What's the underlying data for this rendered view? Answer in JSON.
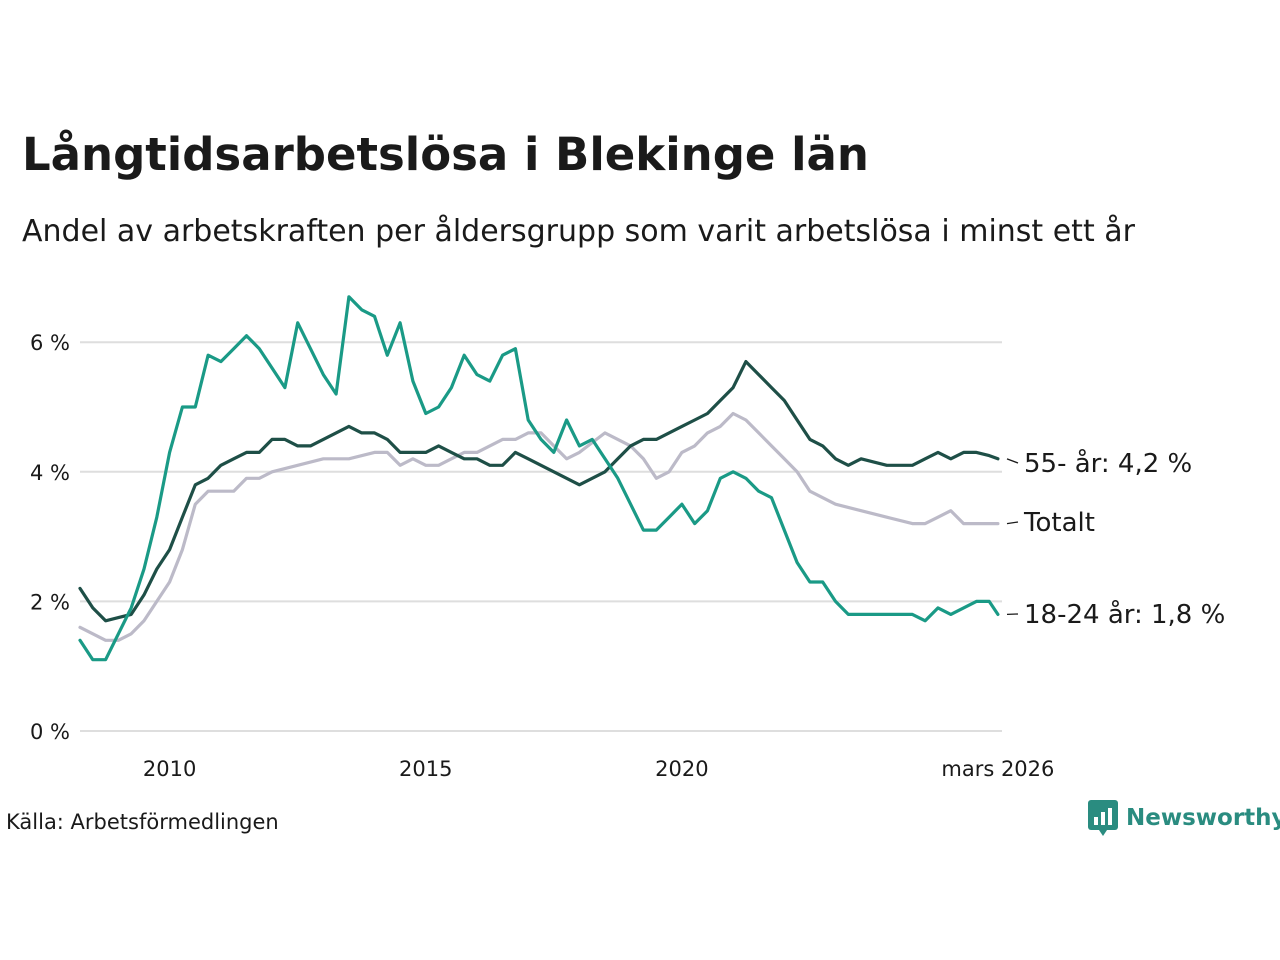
{
  "title": "Långtidsarbetslösa i Blekinge län",
  "subtitle": "Andel av arbetskraften per åldersgrupp som varit arbetslösa i minst ett år",
  "source": "Källa: Arbetsförmedlingen",
  "logo": {
    "text": "Newsworthy",
    "icon": "newsworthy-logo-icon",
    "color": "#2a8c80"
  },
  "chart_data": {
    "type": "line",
    "title": "Långtidsarbetslösa i Blekinge län",
    "xlabel": "",
    "ylabel": "",
    "xlim": [
      2008.25,
      2026.25
    ],
    "ylim": [
      0,
      6.8
    ],
    "y_ticks": [
      0,
      2,
      4,
      6
    ],
    "y_tick_labels": [
      "0 %",
      "2 %",
      "4 %",
      "6 %"
    ],
    "x_ticks": [
      2010,
      2015,
      2020,
      2026.17
    ],
    "x_tick_labels": [
      "2010",
      "2015",
      "2020",
      "mars 2026"
    ],
    "grid": true,
    "series": [
      {
        "name": "Totalt",
        "label": "Totalt",
        "color": "#bcbac8",
        "x": [
          2008.25,
          2008.5,
          2008.75,
          2009.0,
          2009.25,
          2009.5,
          2009.75,
          2010.0,
          2010.25,
          2010.5,
          2010.75,
          2011.0,
          2011.25,
          2011.5,
          2011.75,
          2012.0,
          2012.5,
          2013.0,
          2013.5,
          2014.0,
          2014.25,
          2014.5,
          2014.75,
          2015.0,
          2015.25,
          2015.5,
          2015.75,
          2016.0,
          2016.25,
          2016.5,
          2016.75,
          2017.0,
          2017.25,
          2017.5,
          2017.75,
          2018.0,
          2018.5,
          2019.0,
          2019.25,
          2019.5,
          2019.75,
          2020.0,
          2020.25,
          2020.5,
          2020.75,
          2021.0,
          2021.25,
          2021.5,
          2021.75,
          2022.0,
          2022.25,
          2022.5,
          2022.75,
          2023.0,
          2023.5,
          2024.0,
          2024.5,
          2024.75,
          2025.0,
          2025.25,
          2025.5,
          2026.0,
          2026.17
        ],
        "values": [
          1.6,
          1.5,
          1.4,
          1.4,
          1.5,
          1.7,
          2.0,
          2.3,
          2.8,
          3.5,
          3.7,
          3.7,
          3.7,
          3.9,
          3.9,
          4.0,
          4.1,
          4.2,
          4.2,
          4.3,
          4.3,
          4.1,
          4.2,
          4.1,
          4.1,
          4.2,
          4.3,
          4.3,
          4.4,
          4.5,
          4.5,
          4.6,
          4.6,
          4.4,
          4.2,
          4.3,
          4.6,
          4.4,
          4.2,
          3.9,
          4.0,
          4.3,
          4.4,
          4.6,
          4.7,
          4.9,
          4.8,
          4.6,
          4.4,
          4.2,
          4.0,
          3.7,
          3.6,
          3.5,
          3.4,
          3.3,
          3.2,
          3.2,
          3.3,
          3.4,
          3.2,
          3.2,
          3.2
        ]
      },
      {
        "name": "55- år",
        "label": "55- år: 4,2 %",
        "color": "#1e4f47",
        "x": [
          2008.25,
          2008.5,
          2008.75,
          2009.0,
          2009.25,
          2009.5,
          2009.75,
          2010.0,
          2010.25,
          2010.5,
          2010.75,
          2011.0,
          2011.25,
          2011.5,
          2011.75,
          2012.0,
          2012.25,
          2012.5,
          2012.75,
          2013.0,
          2013.25,
          2013.5,
          2013.75,
          2014.0,
          2014.25,
          2014.5,
          2014.75,
          2015.0,
          2015.25,
          2015.5,
          2015.75,
          2016.0,
          2016.25,
          2016.5,
          2016.75,
          2017.0,
          2017.25,
          2017.5,
          2017.75,
          2018.0,
          2018.25,
          2018.5,
          2018.75,
          2019.0,
          2019.25,
          2019.5,
          2019.75,
          2020.0,
          2020.25,
          2020.5,
          2020.75,
          2021.0,
          2021.25,
          2021.5,
          2021.75,
          2022.0,
          2022.25,
          2022.5,
          2022.75,
          2023.0,
          2023.25,
          2023.5,
          2023.75,
          2024.0,
          2024.25,
          2024.5,
          2024.75,
          2025.0,
          2025.25,
          2025.5,
          2025.75,
          2026.0,
          2026.17
        ],
        "values": [
          2.2,
          1.9,
          1.7,
          1.75,
          1.8,
          2.1,
          2.5,
          2.8,
          3.3,
          3.8,
          3.9,
          4.1,
          4.2,
          4.3,
          4.3,
          4.5,
          4.5,
          4.4,
          4.4,
          4.5,
          4.6,
          4.7,
          4.6,
          4.6,
          4.5,
          4.3,
          4.3,
          4.3,
          4.4,
          4.3,
          4.2,
          4.2,
          4.1,
          4.1,
          4.3,
          4.2,
          4.1,
          4.0,
          3.9,
          3.8,
          3.9,
          4.0,
          4.2,
          4.4,
          4.5,
          4.5,
          4.6,
          4.7,
          4.8,
          4.9,
          5.1,
          5.3,
          5.7,
          5.5,
          5.3,
          5.1,
          4.8,
          4.5,
          4.4,
          4.2,
          4.1,
          4.2,
          4.15,
          4.1,
          4.1,
          4.1,
          4.2,
          4.3,
          4.2,
          4.3,
          4.3,
          4.25,
          4.2
        ]
      },
      {
        "name": "18-24 år",
        "label": "18-24 år: 1,8 %",
        "color": "#1a9a86",
        "x": [
          2008.25,
          2008.5,
          2008.75,
          2009.0,
          2009.25,
          2009.5,
          2009.75,
          2010.0,
          2010.25,
          2010.5,
          2010.75,
          2011.0,
          2011.25,
          2011.5,
          2011.75,
          2012.0,
          2012.25,
          2012.5,
          2012.75,
          2013.0,
          2013.25,
          2013.5,
          2013.75,
          2014.0,
          2014.25,
          2014.5,
          2014.75,
          2015.0,
          2015.25,
          2015.5,
          2015.75,
          2016.0,
          2016.25,
          2016.5,
          2016.75,
          2017.0,
          2017.25,
          2017.5,
          2017.75,
          2018.0,
          2018.25,
          2018.5,
          2018.75,
          2019.0,
          2019.25,
          2019.5,
          2019.75,
          2020.0,
          2020.25,
          2020.5,
          2020.75,
          2021.0,
          2021.25,
          2021.5,
          2021.75,
          2022.0,
          2022.25,
          2022.5,
          2022.75,
          2023.0,
          2023.25,
          2023.5,
          2023.75,
          2024.0,
          2024.25,
          2024.5,
          2024.75,
          2025.0,
          2025.25,
          2025.5,
          2025.75,
          2026.0,
          2026.17
        ],
        "values": [
          1.4,
          1.1,
          1.1,
          1.5,
          1.9,
          2.5,
          3.3,
          4.3,
          5.0,
          5.0,
          5.8,
          5.7,
          5.9,
          6.1,
          5.9,
          5.6,
          5.3,
          6.3,
          5.9,
          5.5,
          5.2,
          6.7,
          6.5,
          6.4,
          5.8,
          6.3,
          5.4,
          4.9,
          5.0,
          5.3,
          5.8,
          5.5,
          5.4,
          5.8,
          5.9,
          4.8,
          4.5,
          4.3,
          4.8,
          4.4,
          4.5,
          4.2,
          3.9,
          3.5,
          3.1,
          3.1,
          3.3,
          3.5,
          3.2,
          3.4,
          3.9,
          4.0,
          3.9,
          3.7,
          3.6,
          3.1,
          2.6,
          2.3,
          2.3,
          2.0,
          1.8,
          1.8,
          1.8,
          1.8,
          1.8,
          1.8,
          1.7,
          1.9,
          1.8,
          1.9,
          2.0,
          2.0,
          1.8
        ]
      }
    ]
  }
}
